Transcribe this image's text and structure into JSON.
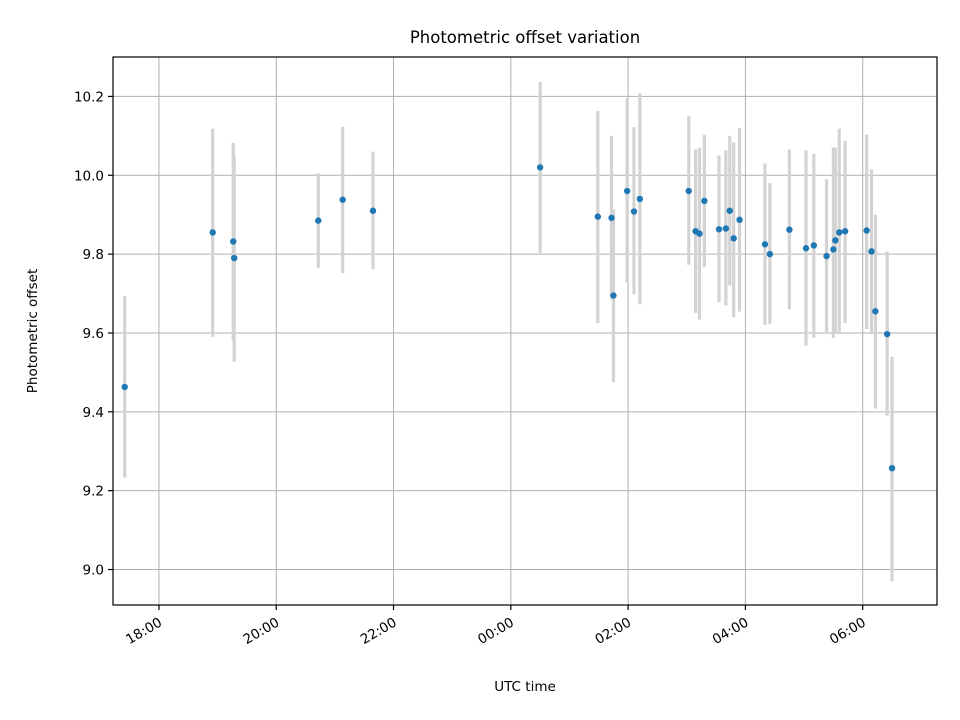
{
  "chart_data": {
    "type": "scatter",
    "title": "Photometric offset variation",
    "xlabel": "UTC time",
    "ylabel": "Photometric offset",
    "x_axis_kind": "time (hours, continuing past midnight)",
    "xlim": [
      "17:13",
      "31:16"
    ],
    "ylim": [
      8.91,
      10.3
    ],
    "x_ticks": [
      {
        "t": "18:00",
        "label": "18:00"
      },
      {
        "t": "20:00",
        "label": "20:00"
      },
      {
        "t": "22:00",
        "label": "22:00"
      },
      {
        "t": "24:00",
        "label": "00:00"
      },
      {
        "t": "26:00",
        "label": "02:00"
      },
      {
        "t": "28:00",
        "label": "04:00"
      },
      {
        "t": "30:00",
        "label": "06:00"
      }
    ],
    "y_ticks": [
      9.0,
      9.2,
      9.4,
      9.6,
      9.8,
      10.0,
      10.2
    ],
    "y_tick_labels": [
      "9.0",
      "9.2",
      "9.4",
      "9.6",
      "9.8",
      "10.0",
      "10.2"
    ],
    "grid": true,
    "point_color": "#1f77b4",
    "errorbar_color": "#d3d3d3",
    "points": [
      {
        "x": "17:25",
        "y": 9.463,
        "ylo": 9.233,
        "yhi": 9.693
      },
      {
        "x": "18:55",
        "y": 9.855,
        "ylo": 9.59,
        "yhi": 10.118
      },
      {
        "x": "19:16",
        "y": 9.832,
        "ylo": 9.582,
        "yhi": 10.082
      },
      {
        "x": "19:17",
        "y": 9.79,
        "ylo": 9.527,
        "yhi": 10.05
      },
      {
        "x": "20:43",
        "y": 9.885,
        "ylo": 9.765,
        "yhi": 10.005
      },
      {
        "x": "21:08",
        "y": 9.938,
        "ylo": 9.752,
        "yhi": 10.123
      },
      {
        "x": "21:39",
        "y": 9.91,
        "ylo": 9.762,
        "yhi": 10.06
      },
      {
        "x": "24:30",
        "y": 10.02,
        "ylo": 9.803,
        "yhi": 10.237
      },
      {
        "x": "25:29",
        "y": 9.895,
        "ylo": 9.625,
        "yhi": 10.163
      },
      {
        "x": "25:43",
        "y": 9.892,
        "ylo": 9.685,
        "yhi": 10.1
      },
      {
        "x": "25:45",
        "y": 9.695,
        "ylo": 9.475,
        "yhi": 9.913
      },
      {
        "x": "25:59",
        "y": 9.96,
        "ylo": 9.727,
        "yhi": 10.195
      },
      {
        "x": "26:06",
        "y": 9.908,
        "ylo": 9.698,
        "yhi": 10.122
      },
      {
        "x": "26:12",
        "y": 9.94,
        "ylo": 9.673,
        "yhi": 10.208
      },
      {
        "x": "27:02",
        "y": 9.96,
        "ylo": 9.773,
        "yhi": 10.15
      },
      {
        "x": "27:09",
        "y": 9.858,
        "ylo": 9.651,
        "yhi": 10.066
      },
      {
        "x": "27:13",
        "y": 9.852,
        "ylo": 9.634,
        "yhi": 10.07
      },
      {
        "x": "27:18",
        "y": 9.935,
        "ylo": 9.767,
        "yhi": 10.103
      },
      {
        "x": "27:33",
        "y": 9.863,
        "ylo": 9.678,
        "yhi": 10.05
      },
      {
        "x": "27:40",
        "y": 9.865,
        "ylo": 9.67,
        "yhi": 10.063
      },
      {
        "x": "27:44",
        "y": 9.91,
        "ylo": 9.72,
        "yhi": 10.1
      },
      {
        "x": "27:48",
        "y": 9.84,
        "ylo": 9.64,
        "yhi": 10.083
      },
      {
        "x": "27:54",
        "y": 9.887,
        "ylo": 9.654,
        "yhi": 10.12
      },
      {
        "x": "28:20",
        "y": 9.825,
        "ylo": 9.621,
        "yhi": 10.03
      },
      {
        "x": "28:25",
        "y": 9.8,
        "ylo": 9.623,
        "yhi": 9.98
      },
      {
        "x": "28:45",
        "y": 9.862,
        "ylo": 9.66,
        "yhi": 10.065
      },
      {
        "x": "29:02",
        "y": 9.815,
        "ylo": 9.568,
        "yhi": 10.063
      },
      {
        "x": "29:10",
        "y": 9.822,
        "ylo": 9.588,
        "yhi": 10.055
      },
      {
        "x": "29:23",
        "y": 9.795,
        "ylo": 9.6,
        "yhi": 9.99
      },
      {
        "x": "29:30",
        "y": 9.812,
        "ylo": 9.587,
        "yhi": 10.07
      },
      {
        "x": "29:32",
        "y": 9.835,
        "ylo": 9.6,
        "yhi": 10.07
      },
      {
        "x": "29:36",
        "y": 9.855,
        "ylo": 9.597,
        "yhi": 10.118
      },
      {
        "x": "29:42",
        "y": 9.858,
        "ylo": 9.625,
        "yhi": 10.088
      },
      {
        "x": "30:04",
        "y": 9.86,
        "ylo": 9.61,
        "yhi": 10.103
      },
      {
        "x": "30:09",
        "y": 9.807,
        "ylo": 9.597,
        "yhi": 10.015
      },
      {
        "x": "30:13",
        "y": 9.655,
        "ylo": 9.408,
        "yhi": 9.9
      },
      {
        "x": "30:25",
        "y": 9.597,
        "ylo": 9.39,
        "yhi": 9.807
      },
      {
        "x": "30:30",
        "y": 9.257,
        "ylo": 8.97,
        "yhi": 9.54
      }
    ]
  }
}
